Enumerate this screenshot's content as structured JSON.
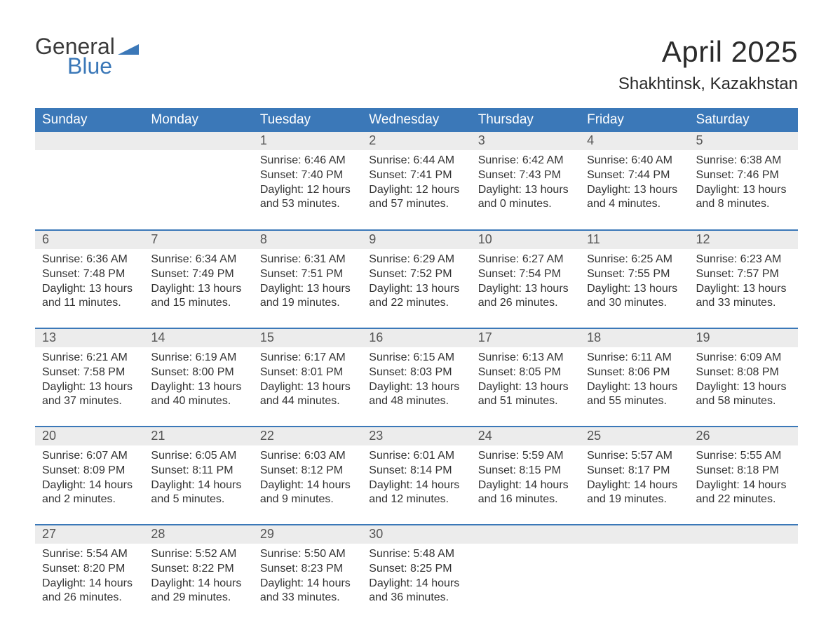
{
  "brand": {
    "word1": "General",
    "word2": "Blue",
    "triangle_color": "#3b78b8"
  },
  "header": {
    "title": "April 2025",
    "location": "Shakhtinsk, Kazakhstan"
  },
  "colors": {
    "header_bg": "#3b78b8",
    "header_text": "#ffffff",
    "row_divider": "#3b78b8",
    "daynum_bg": "#ececec",
    "body_text": "#333333",
    "page_bg": "#ffffff"
  },
  "calendar": {
    "columns": [
      "Sunday",
      "Monday",
      "Tuesday",
      "Wednesday",
      "Thursday",
      "Friday",
      "Saturday"
    ],
    "weeks": [
      [
        null,
        null,
        {
          "n": "1",
          "sunrise": "6:46 AM",
          "sunset": "7:40 PM",
          "dl1": "12 hours",
          "dl2": "and 53 minutes."
        },
        {
          "n": "2",
          "sunrise": "6:44 AM",
          "sunset": "7:41 PM",
          "dl1": "12 hours",
          "dl2": "and 57 minutes."
        },
        {
          "n": "3",
          "sunrise": "6:42 AM",
          "sunset": "7:43 PM",
          "dl1": "13 hours",
          "dl2": "and 0 minutes."
        },
        {
          "n": "4",
          "sunrise": "6:40 AM",
          "sunset": "7:44 PM",
          "dl1": "13 hours",
          "dl2": "and 4 minutes."
        },
        {
          "n": "5",
          "sunrise": "6:38 AM",
          "sunset": "7:46 PM",
          "dl1": "13 hours",
          "dl2": "and 8 minutes."
        }
      ],
      [
        {
          "n": "6",
          "sunrise": "6:36 AM",
          "sunset": "7:48 PM",
          "dl1": "13 hours",
          "dl2": "and 11 minutes."
        },
        {
          "n": "7",
          "sunrise": "6:34 AM",
          "sunset": "7:49 PM",
          "dl1": "13 hours",
          "dl2": "and 15 minutes."
        },
        {
          "n": "8",
          "sunrise": "6:31 AM",
          "sunset": "7:51 PM",
          "dl1": "13 hours",
          "dl2": "and 19 minutes."
        },
        {
          "n": "9",
          "sunrise": "6:29 AM",
          "sunset": "7:52 PM",
          "dl1": "13 hours",
          "dl2": "and 22 minutes."
        },
        {
          "n": "10",
          "sunrise": "6:27 AM",
          "sunset": "7:54 PM",
          "dl1": "13 hours",
          "dl2": "and 26 minutes."
        },
        {
          "n": "11",
          "sunrise": "6:25 AM",
          "sunset": "7:55 PM",
          "dl1": "13 hours",
          "dl2": "and 30 minutes."
        },
        {
          "n": "12",
          "sunrise": "6:23 AM",
          "sunset": "7:57 PM",
          "dl1": "13 hours",
          "dl2": "and 33 minutes."
        }
      ],
      [
        {
          "n": "13",
          "sunrise": "6:21 AM",
          "sunset": "7:58 PM",
          "dl1": "13 hours",
          "dl2": "and 37 minutes."
        },
        {
          "n": "14",
          "sunrise": "6:19 AM",
          "sunset": "8:00 PM",
          "dl1": "13 hours",
          "dl2": "and 40 minutes."
        },
        {
          "n": "15",
          "sunrise": "6:17 AM",
          "sunset": "8:01 PM",
          "dl1": "13 hours",
          "dl2": "and 44 minutes."
        },
        {
          "n": "16",
          "sunrise": "6:15 AM",
          "sunset": "8:03 PM",
          "dl1": "13 hours",
          "dl2": "and 48 minutes."
        },
        {
          "n": "17",
          "sunrise": "6:13 AM",
          "sunset": "8:05 PM",
          "dl1": "13 hours",
          "dl2": "and 51 minutes."
        },
        {
          "n": "18",
          "sunrise": "6:11 AM",
          "sunset": "8:06 PM",
          "dl1": "13 hours",
          "dl2": "and 55 minutes."
        },
        {
          "n": "19",
          "sunrise": "6:09 AM",
          "sunset": "8:08 PM",
          "dl1": "13 hours",
          "dl2": "and 58 minutes."
        }
      ],
      [
        {
          "n": "20",
          "sunrise": "6:07 AM",
          "sunset": "8:09 PM",
          "dl1": "14 hours",
          "dl2": "and 2 minutes."
        },
        {
          "n": "21",
          "sunrise": "6:05 AM",
          "sunset": "8:11 PM",
          "dl1": "14 hours",
          "dl2": "and 5 minutes."
        },
        {
          "n": "22",
          "sunrise": "6:03 AM",
          "sunset": "8:12 PM",
          "dl1": "14 hours",
          "dl2": "and 9 minutes."
        },
        {
          "n": "23",
          "sunrise": "6:01 AM",
          "sunset": "8:14 PM",
          "dl1": "14 hours",
          "dl2": "and 12 minutes."
        },
        {
          "n": "24",
          "sunrise": "5:59 AM",
          "sunset": "8:15 PM",
          "dl1": "14 hours",
          "dl2": "and 16 minutes."
        },
        {
          "n": "25",
          "sunrise": "5:57 AM",
          "sunset": "8:17 PM",
          "dl1": "14 hours",
          "dl2": "and 19 minutes."
        },
        {
          "n": "26",
          "sunrise": "5:55 AM",
          "sunset": "8:18 PM",
          "dl1": "14 hours",
          "dl2": "and 22 minutes."
        }
      ],
      [
        {
          "n": "27",
          "sunrise": "5:54 AM",
          "sunset": "8:20 PM",
          "dl1": "14 hours",
          "dl2": "and 26 minutes."
        },
        {
          "n": "28",
          "sunrise": "5:52 AM",
          "sunset": "8:22 PM",
          "dl1": "14 hours",
          "dl2": "and 29 minutes."
        },
        {
          "n": "29",
          "sunrise": "5:50 AM",
          "sunset": "8:23 PM",
          "dl1": "14 hours",
          "dl2": "and 33 minutes."
        },
        {
          "n": "30",
          "sunrise": "5:48 AM",
          "sunset": "8:25 PM",
          "dl1": "14 hours",
          "dl2": "and 36 minutes."
        },
        null,
        null,
        null
      ]
    ],
    "labels": {
      "sunrise": "Sunrise: ",
      "sunset": "Sunset: ",
      "daylight": "Daylight: "
    }
  }
}
